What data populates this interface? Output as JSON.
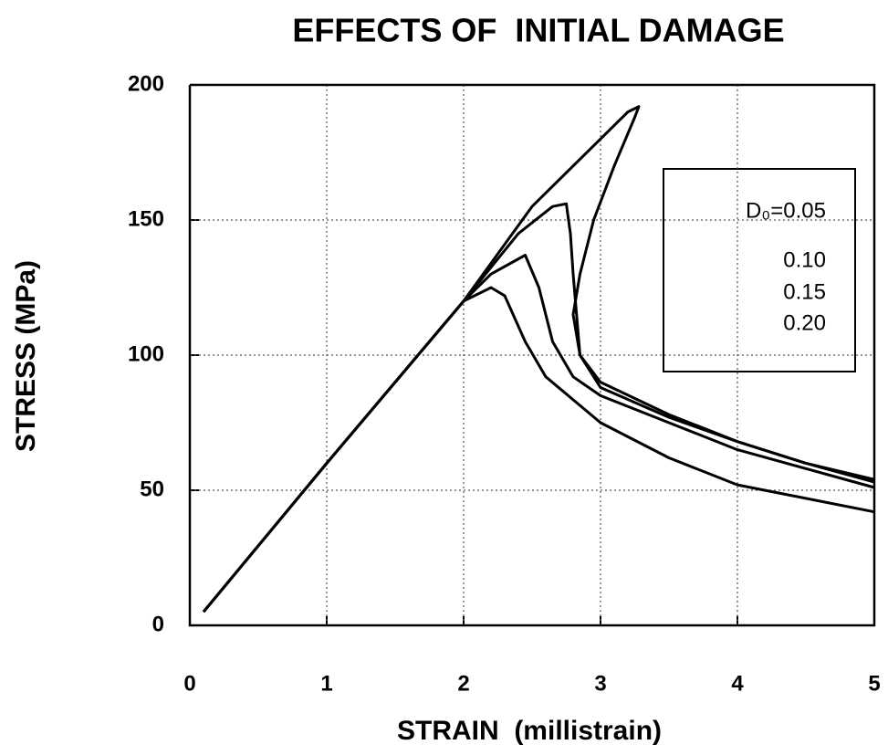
{
  "chart_data": {
    "type": "line",
    "title": "EFFECTS OF  INITIAL DAMAGE",
    "x_label": "STRAIN  (millistrain)",
    "y_label": "STRESS (MPa)",
    "xlim": [
      0,
      5
    ],
    "ylim": [
      0,
      200
    ],
    "xticks": [
      0,
      1,
      2,
      3,
      4,
      5
    ],
    "yticks": [
      0,
      50,
      100,
      150,
      200
    ],
    "grid": true,
    "legend": "upper right",
    "series": [
      {
        "name": "D₀=0.05",
        "color": "#000000",
        "x": [
          0.1,
          1,
          2,
          2.5,
          3,
          3.2,
          3.28,
          3.25,
          3.1,
          2.95,
          2.85,
          2.8,
          2.85,
          3,
          3.5,
          4,
          4.5,
          5
        ],
        "values": [
          5,
          60,
          120,
          155,
          180,
          190,
          192,
          188,
          170,
          150,
          130,
          115,
          100,
          90,
          78,
          68,
          60,
          54
        ]
      },
      {
        "name": "0.10",
        "color": "#000000",
        "x": [
          0.1,
          1,
          2,
          2.4,
          2.65,
          2.75,
          2.78,
          2.8,
          2.85,
          3,
          3.5,
          4,
          4.5,
          5
        ],
        "values": [
          5,
          60,
          120,
          145,
          155,
          156,
          145,
          130,
          100,
          88,
          77,
          68,
          60,
          53
        ]
      },
      {
        "name": "0.15",
        "color": "#000000",
        "x": [
          0.1,
          1,
          2,
          2.2,
          2.45,
          2.55,
          2.65,
          2.8,
          3,
          3.5,
          4,
          4.5,
          5
        ],
        "values": [
          5,
          60,
          120,
          130,
          137,
          125,
          105,
          92,
          85,
          75,
          65,
          58,
          51
        ]
      },
      {
        "name": "0.20",
        "color": "#000000",
        "x": [
          0.1,
          1,
          2,
          2.2,
          2.3,
          2.45,
          2.6,
          3,
          3.5,
          4,
          4.5,
          5
        ],
        "values": [
          5,
          60,
          120,
          125,
          122,
          105,
          92,
          75,
          62,
          52,
          47,
          42
        ]
      }
    ]
  }
}
